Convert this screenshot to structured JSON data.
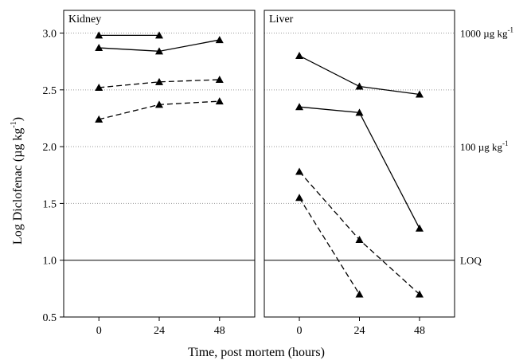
{
  "chart_data": {
    "type": "line",
    "ylabel_main": "Log Diclofenac (µg kg",
    "ylabel_sup": "-1",
    "ylabel_close": ")",
    "xlabel": "Time, post mortem (hours)",
    "x_ticks": [
      0,
      24,
      48
    ],
    "y_ticks": [
      0.5,
      1.0,
      1.5,
      2.0,
      2.5,
      3.0
    ],
    "y_tick_labels": [
      "0.5",
      "1.0",
      "1.5",
      "2.0",
      "2.5",
      "3.0"
    ],
    "ylim": [
      0.5,
      3.2
    ],
    "xlim": [
      -14,
      62
    ],
    "grid": "dotted horizontal",
    "loq_value": 1.0,
    "reference_labels": [
      {
        "value": 3.0,
        "main": "1000 µg kg",
        "sup": "-1"
      },
      {
        "value": 2.0,
        "main": "100 µg kg",
        "sup": "-1"
      },
      {
        "value": 1.0,
        "main": "LOQ",
        "sup": ""
      }
    ],
    "panels": [
      {
        "title": "Kidney",
        "series": [
          {
            "style": "solid",
            "points": [
              [
                0,
                2.98
              ],
              [
                24,
                2.98
              ]
            ]
          },
          {
            "style": "solid",
            "points": [
              [
                0,
                2.87
              ],
              [
                24,
                2.84
              ],
              [
                48,
                2.94
              ]
            ]
          },
          {
            "style": "dashed",
            "points": [
              [
                0,
                2.52
              ],
              [
                24,
                2.57
              ],
              [
                48,
                2.59
              ]
            ]
          },
          {
            "style": "dashed",
            "points": [
              [
                0,
                2.24
              ],
              [
                24,
                2.37
              ],
              [
                48,
                2.4
              ]
            ]
          }
        ]
      },
      {
        "title": "Liver",
        "series": [
          {
            "style": "solid",
            "points": [
              [
                0,
                2.8
              ],
              [
                24,
                2.53
              ],
              [
                48,
                2.46
              ]
            ]
          },
          {
            "style": "solid",
            "points": [
              [
                0,
                2.35
              ],
              [
                24,
                2.3
              ],
              [
                48,
                1.28
              ]
            ]
          },
          {
            "style": "dashed",
            "points": [
              [
                0,
                1.78
              ],
              [
                24,
                1.18
              ],
              [
                48,
                0.7
              ]
            ]
          },
          {
            "style": "dashed",
            "points": [
              [
                0,
                1.55
              ],
              [
                24,
                0.7
              ]
            ]
          }
        ]
      }
    ]
  }
}
